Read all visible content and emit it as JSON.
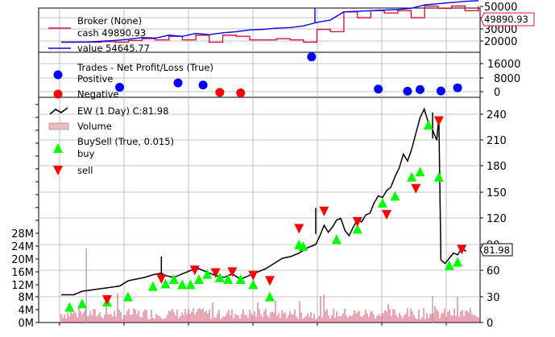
{
  "broker_panel": {
    "legend_title": "Broker (None)",
    "cash_label": "cash 49890.93",
    "value_label": "value 54645.77",
    "last_value_tag": "49890.93",
    "y_ticks": [
      "20000",
      "30000",
      "40000",
      "50000"
    ],
    "cash_color": "#dc143c",
    "value_color": "#0000ff"
  },
  "trades_panel": {
    "legend_title": "Trades - Net Profit/Loss (True)",
    "positive_label": "Positive",
    "negative_label": "Negative",
    "y_ticks": [
      "0",
      "8000",
      "16000"
    ],
    "positive_color": "#0000ff",
    "negative_color": "#ff0000"
  },
  "main_panel": {
    "price_label": "EW (1 Day) C:81.98",
    "volume_label": "Volume",
    "buysell_label": "BuySell (True, 0.015)",
    "buy_label": "buy",
    "sell_label": "sell",
    "last_price_tag": "81.98",
    "price_ticks": [
      "0",
      "30",
      "60",
      "90",
      "120",
      "150",
      "180",
      "210",
      "240"
    ],
    "volume_ticks": [
      "0M",
      "4M",
      "8M",
      "12M",
      "16M",
      "20M",
      "24M",
      "28M"
    ],
    "buy_color": "#00ff00",
    "sell_color": "#ff0000",
    "price_color": "#000000",
    "volume_color": "#c41e3a"
  },
  "chart_data": [
    {
      "type": "line",
      "title": "Broker (None)",
      "series": [
        {
          "name": "cash 49890.93",
          "values": [
            19000,
            19000,
            19000,
            19500,
            19000,
            20500,
            22000,
            21000,
            24000,
            21000,
            25000,
            19000,
            25000,
            24000,
            21000,
            21000,
            22000,
            21000,
            19000,
            30000,
            28000,
            45000,
            40000,
            46000,
            44000,
            46000,
            40000,
            50000,
            48000,
            50000,
            46000,
            49890.93
          ]
        },
        {
          "name": "value 54645.77",
          "values": [
            19000,
            19000,
            19200,
            19800,
            20500,
            21500,
            23000,
            22500,
            25000,
            24000,
            26500,
            25500,
            27000,
            28000,
            29500,
            30000,
            31000,
            31500,
            33000,
            36000,
            38000,
            45000,
            45500,
            46000,
            46500,
            47000,
            48000,
            51000,
            52000,
            53000,
            54000,
            54645.77
          ]
        }
      ],
      "ylim": [
        13000,
        59000
      ]
    },
    {
      "type": "scatter",
      "title": "Trades - Net Profit/Loss (True)",
      "series": [
        {
          "name": "Positive",
          "x": [
            0.14,
            0.28,
            0.34,
            0.6,
            0.76,
            0.83,
            0.86,
            0.91,
            0.95
          ],
          "y": [
            2500,
            5000,
            3800,
            19800,
            1500,
            300,
            1200,
            400,
            2200
          ]
        },
        {
          "name": "Negative",
          "x": [
            0.38,
            0.43
          ],
          "y": [
            -400,
            -700
          ]
        }
      ],
      "ylim": [
        -3500,
        22000
      ]
    },
    {
      "type": "line",
      "title": "EW (1 Day) C:81.98",
      "ylim": [
        0,
        255
      ],
      "price": [
        [
          0.0,
          32
        ],
        [
          0.03,
          32
        ],
        [
          0.05,
          36
        ],
        [
          0.08,
          38
        ],
        [
          0.11,
          40
        ],
        [
          0.14,
          42
        ],
        [
          0.16,
          48
        ],
        [
          0.18,
          50
        ],
        [
          0.2,
          52
        ],
        [
          0.22,
          55
        ],
        [
          0.24,
          57
        ],
        [
          0.25,
          54
        ],
        [
          0.27,
          52
        ],
        [
          0.29,
          56
        ],
        [
          0.31,
          60
        ],
        [
          0.33,
          62
        ],
        [
          0.35,
          58
        ],
        [
          0.37,
          54
        ],
        [
          0.39,
          52
        ],
        [
          0.41,
          56
        ],
        [
          0.43,
          50
        ],
        [
          0.45,
          54
        ],
        [
          0.47,
          58
        ],
        [
          0.49,
          62
        ],
        [
          0.51,
          68
        ],
        [
          0.53,
          74
        ],
        [
          0.55,
          76
        ],
        [
          0.57,
          80
        ],
        [
          0.59,
          86
        ],
        [
          0.61,
          90
        ],
        [
          0.62,
          100
        ],
        [
          0.63,
          112
        ],
        [
          0.64,
          104
        ],
        [
          0.65,
          110
        ],
        [
          0.66,
          118
        ],
        [
          0.67,
          120
        ],
        [
          0.68,
          106
        ],
        [
          0.69,
          100
        ],
        [
          0.7,
          110
        ],
        [
          0.71,
          118
        ],
        [
          0.72,
          116
        ],
        [
          0.73,
          124
        ],
        [
          0.74,
          126
        ],
        [
          0.75,
          138
        ],
        [
          0.76,
          146
        ],
        [
          0.77,
          144
        ],
        [
          0.78,
          152
        ],
        [
          0.79,
          156
        ],
        [
          0.8,
          168
        ],
        [
          0.81,
          178
        ],
        [
          0.82,
          194
        ],
        [
          0.83,
          186
        ],
        [
          0.84,
          200
        ],
        [
          0.85,
          218
        ],
        [
          0.86,
          236
        ],
        [
          0.87,
          246
        ],
        [
          0.88,
          230
        ],
        [
          0.89,
          222
        ],
        [
          0.9,
          210
        ],
        [
          0.905,
          236
        ],
        [
          0.91,
          72
        ],
        [
          0.92,
          68
        ],
        [
          0.93,
          74
        ],
        [
          0.94,
          80
        ],
        [
          0.95,
          78
        ],
        [
          0.96,
          86
        ],
        [
          0.97,
          82
        ]
      ],
      "spikes": [
        [
          0.24,
          76
        ],
        [
          0.61,
          132
        ],
        [
          0.89,
          242
        ]
      ],
      "buy_x": [
        0.02,
        0.05,
        0.11,
        0.16,
        0.22,
        0.25,
        0.27,
        0.29,
        0.31,
        0.33,
        0.35,
        0.38,
        0.4,
        0.43,
        0.46,
        0.5,
        0.57,
        0.58,
        0.66,
        0.71,
        0.77,
        0.8,
        0.84,
        0.86,
        0.88,
        0.905,
        0.93,
        0.95
      ],
      "buy_y": [
        18,
        22,
        24,
        30,
        42,
        45,
        50,
        44,
        44,
        50,
        56,
        52,
        50,
        50,
        44,
        30,
        90,
        88,
        96,
        108,
        138,
        146,
        168,
        174,
        228,
        168,
        66,
        70
      ],
      "sell_x": [
        0.11,
        0.24,
        0.32,
        0.37,
        0.41,
        0.46,
        0.5,
        0.57,
        0.63,
        0.71,
        0.78,
        0.85,
        0.905,
        0.96
      ],
      "sell_y": [
        26,
        50,
        60,
        57,
        58,
        54,
        48,
        108,
        128,
        116,
        124,
        154,
        232,
        84
      ]
    }
  ]
}
